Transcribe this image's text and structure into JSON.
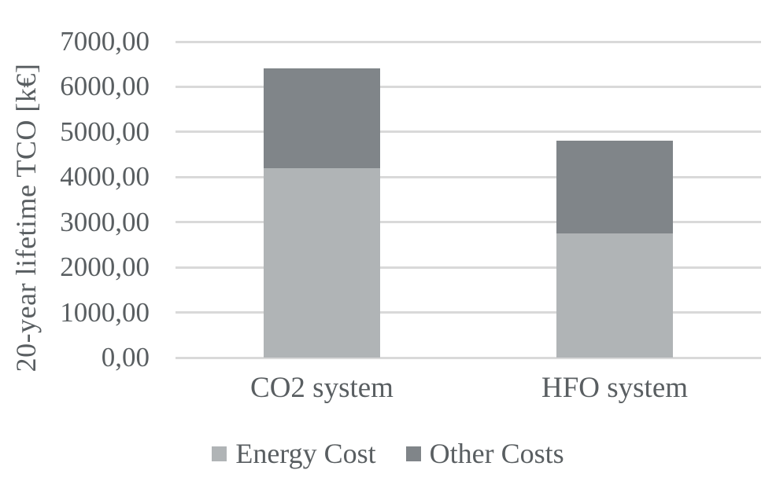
{
  "chart_data": {
    "type": "bar",
    "stacked": true,
    "title": "",
    "xlabel": "",
    "ylabel": "20-year lifetime TCO [k€]",
    "categories": [
      "CO2 system",
      "HFO system"
    ],
    "series": [
      {
        "name": "Energy Cost",
        "color": "#b0b4b6",
        "values": [
          4200,
          2750
        ]
      },
      {
        "name": "Other Costs",
        "color": "#808589",
        "values": [
          2200,
          2050
        ]
      }
    ],
    "ylim": [
      0,
      7000
    ],
    "ytick_step": 1000,
    "yticks": [
      {
        "value": 7000,
        "label": "7000,00"
      },
      {
        "value": 6000,
        "label": "6000,00"
      },
      {
        "value": 5000,
        "label": "5000,00"
      },
      {
        "value": 4000,
        "label": "4000,00"
      },
      {
        "value": 3000,
        "label": "3000,00"
      },
      {
        "value": 2000,
        "label": "2000,00"
      },
      {
        "value": 1000,
        "label": "1000,00"
      },
      {
        "value": 0,
        "label": "0,00"
      }
    ],
    "grid": true,
    "legend_position": "bottom",
    "colors": {
      "gridline": "#d9d9d9",
      "text": "#595e61",
      "background": "#ffffff"
    }
  }
}
